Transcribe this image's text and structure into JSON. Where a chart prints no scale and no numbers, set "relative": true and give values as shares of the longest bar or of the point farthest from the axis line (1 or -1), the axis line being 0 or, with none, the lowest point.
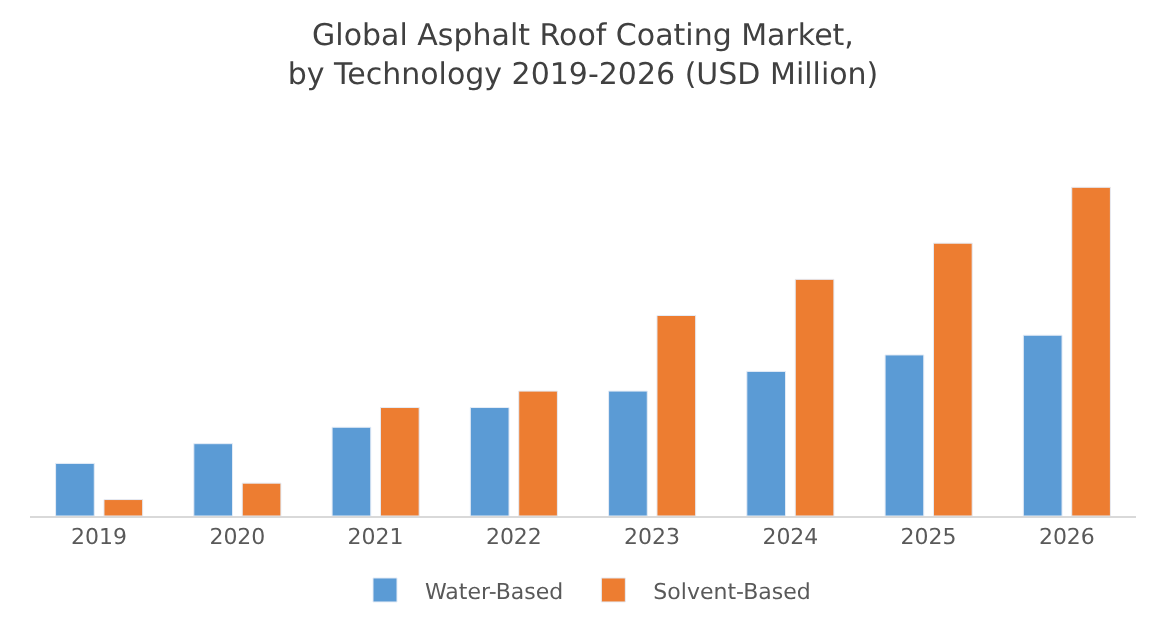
{
  "chart_data": {
    "type": "bar",
    "title": "Global Asphalt Roof Coating Market,\nby Technology 2019-2026 (USD Million)",
    "categories": [
      "2019",
      "2020",
      "2021",
      "2022",
      "2023",
      "2024",
      "2025",
      "2026"
    ],
    "relative": true,
    "legend": "bottom",
    "series": [
      {
        "name": "Water-Based",
        "color": "#5b9bd5",
        "values": [
          0.16,
          0.22,
          0.27,
          0.33,
          0.38,
          0.44,
          0.49,
          0.55
        ]
      },
      {
        "name": "Solvent-Based",
        "color": "#ed7d31",
        "values": [
          0.05,
          0.1,
          0.33,
          0.38,
          0.61,
          0.72,
          0.83,
          1.0
        ]
      }
    ]
  }
}
